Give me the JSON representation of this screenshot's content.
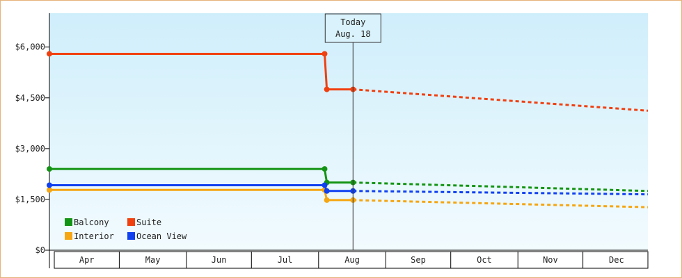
{
  "chart_data": {
    "type": "line",
    "title": "",
    "xlabel": "",
    "ylabel": "",
    "ylim": [
      0,
      7000
    ],
    "yticks": [
      0,
      1500,
      3000,
      4500,
      6000
    ],
    "ytick_labels": [
      "$0",
      "$1,500",
      "$3,000",
      "$4,500",
      "$6,000"
    ],
    "months": [
      "Apr",
      "May",
      "Jun",
      "Jul",
      "Aug",
      "Sep",
      "Oct",
      "Nov",
      "Dec"
    ],
    "x_range": [
      "2025-04-01",
      "2025-12-31"
    ],
    "grid": false,
    "legend_position": "bottom-left",
    "today": {
      "line1": "Today",
      "line2": "Aug. 18",
      "date": "2025-08-18"
    },
    "series": [
      {
        "name": "Balcony",
        "color": "#149414",
        "points": [
          {
            "date": "2025-04-01",
            "value": 2400
          },
          {
            "date": "2025-08-05",
            "value": 2400
          },
          {
            "date": "2025-08-06",
            "value": 2000
          },
          {
            "date": "2025-08-18",
            "value": 2000
          }
        ],
        "forecast": [
          {
            "date": "2025-08-18",
            "value": 2000
          },
          {
            "date": "2025-12-31",
            "value": 1750
          }
        ]
      },
      {
        "name": "Suite",
        "color": "#f04010",
        "points": [
          {
            "date": "2025-04-01",
            "value": 5800
          },
          {
            "date": "2025-08-05",
            "value": 5800
          },
          {
            "date": "2025-08-06",
            "value": 4750
          },
          {
            "date": "2025-08-18",
            "value": 4750
          }
        ],
        "forecast": [
          {
            "date": "2025-08-18",
            "value": 4750
          },
          {
            "date": "2025-12-31",
            "value": 4120
          }
        ]
      },
      {
        "name": "Interior",
        "color": "#f5a612",
        "points": [
          {
            "date": "2025-04-01",
            "value": 1780
          },
          {
            "date": "2025-08-05",
            "value": 1780
          },
          {
            "date": "2025-08-06",
            "value": 1480
          },
          {
            "date": "2025-08-18",
            "value": 1480
          }
        ],
        "forecast": [
          {
            "date": "2025-08-18",
            "value": 1480
          },
          {
            "date": "2025-12-31",
            "value": 1270
          }
        ]
      },
      {
        "name": "Ocean View",
        "color": "#1040f0",
        "points": [
          {
            "date": "2025-04-01",
            "value": 1920
          },
          {
            "date": "2025-08-05",
            "value": 1920
          },
          {
            "date": "2025-08-06",
            "value": 1750
          },
          {
            "date": "2025-08-18",
            "value": 1750
          }
        ],
        "forecast": [
          {
            "date": "2025-08-18",
            "value": 1750
          },
          {
            "date": "2025-12-31",
            "value": 1650
          }
        ]
      }
    ]
  }
}
